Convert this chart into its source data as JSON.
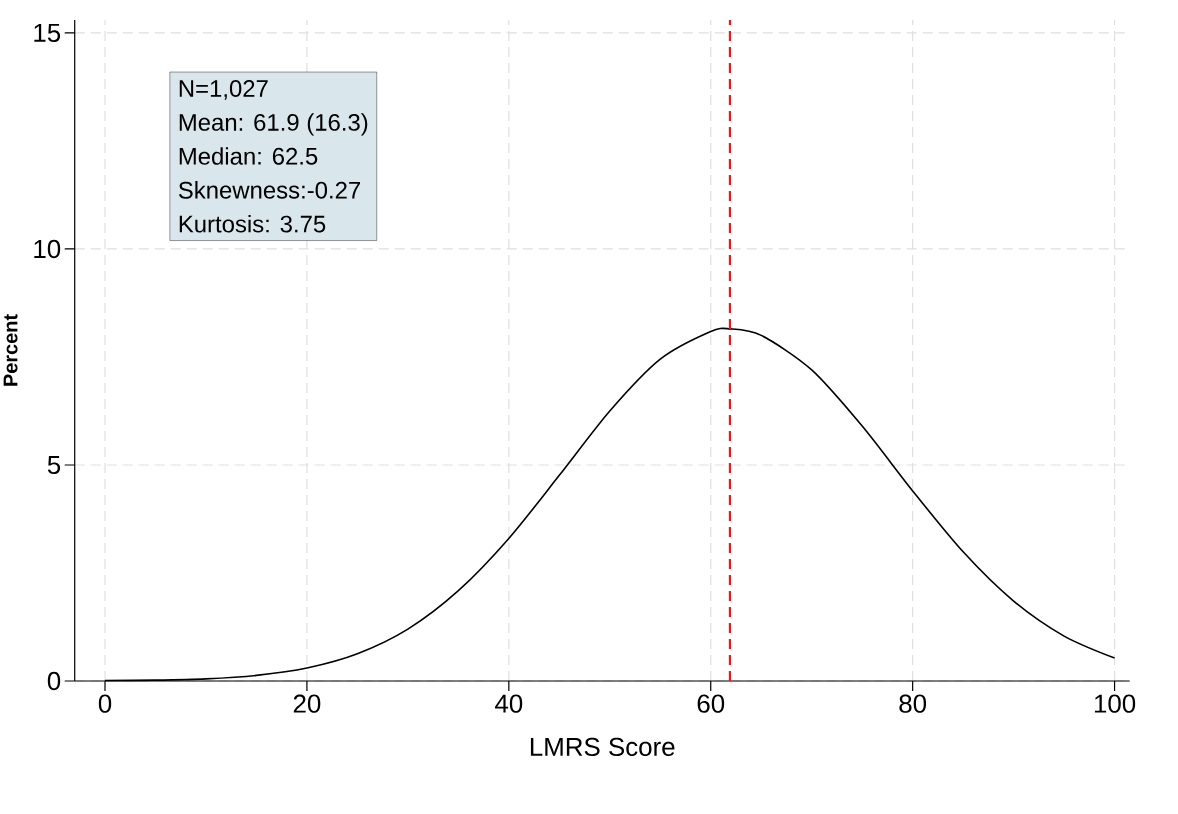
{
  "chart_data": {
    "type": "line",
    "xlabel": "LMRS Score",
    "ylabel": "Percent",
    "x": [
      0,
      5,
      10,
      15,
      20,
      25,
      30,
      35,
      40,
      45,
      50,
      55,
      60,
      61.9,
      65,
      70,
      75,
      80,
      85,
      90,
      95,
      100
    ],
    "series": [
      {
        "color": "#000000",
        "values": [
          0.01,
          0.02,
          0.05,
          0.13,
          0.3,
          0.63,
          1.2,
          2.09,
          3.3,
          4.76,
          6.25,
          7.45,
          8.09,
          8.15,
          8.0,
          7.2,
          5.9,
          4.4,
          2.99,
          1.85,
          1.04,
          0.53
        ]
      }
    ],
    "xlim": [
      -3,
      101.5
    ],
    "ylim": [
      0,
      15.3
    ],
    "xticks": [
      0,
      20,
      40,
      60,
      80,
      100
    ],
    "yticks": [
      0,
      5,
      10,
      15
    ],
    "grid": true,
    "marker": "none",
    "line_style": "solid",
    "ref_lines": [
      {
        "axis": "x",
        "value": 61.9,
        "color": "#e41a1c",
        "line_style": "dashed"
      }
    ],
    "annotations": [
      "N=1,027",
      "Mean: 61.9 (16.3)",
      "Median: 62.5",
      "Sknewness:-0.27",
      "Kurtosis: 3.75"
    ]
  }
}
